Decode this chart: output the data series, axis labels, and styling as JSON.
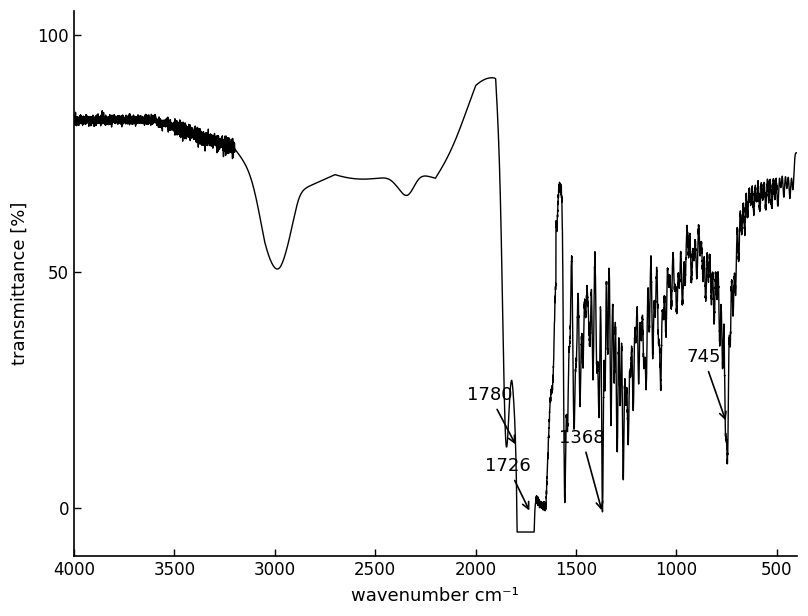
{
  "title": "",
  "xlabel": "wavenumber cm⁻¹",
  "ylabel": "transmittance [%]",
  "xlim": [
    4000,
    400
  ],
  "ylim": [
    -10,
    105
  ],
  "yticks": [
    0,
    50,
    100
  ],
  "xticks": [
    4000,
    3500,
    3000,
    2500,
    2000,
    1500,
    1000,
    500
  ],
  "line_color": "#000000",
  "background_color": "#ffffff",
  "linewidth": 1.0
}
